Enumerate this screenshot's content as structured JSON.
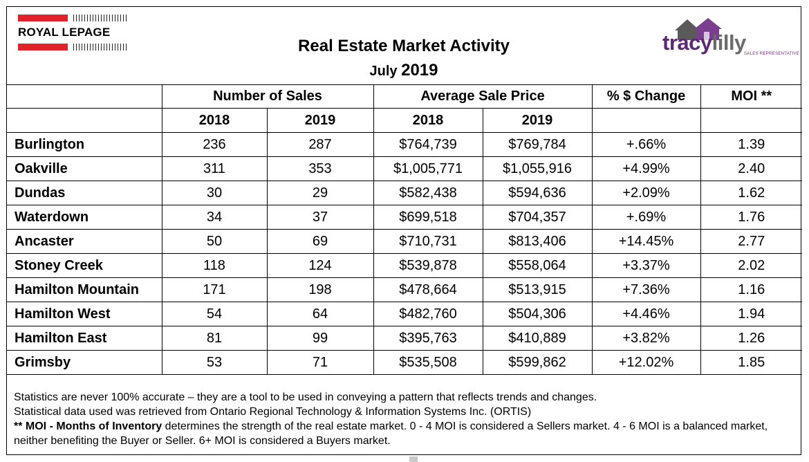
{
  "header": {
    "brand_left": "ROYAL LEPAGE",
    "title": "Real Estate Market Activity",
    "subtitle_month": "July",
    "subtitle_year": "2019",
    "brand_right_first": "tracy",
    "brand_right_second": "lilly",
    "brand_right_sub": "SALES REPRESENTATIVE"
  },
  "table": {
    "group_headers": [
      "Number of Sales",
      "Average Sale Price",
      "% $ Change",
      "MOI **"
    ],
    "year_headers": [
      "2018",
      "2019",
      "2018",
      "2019"
    ],
    "rows": [
      {
        "area": "Burlington",
        "sales_2018": "236",
        "sales_2019": "287",
        "price_2018": "$764,739",
        "price_2019": "$769,784",
        "change": "+.66%",
        "moi": "1.39"
      },
      {
        "area": "Oakville",
        "sales_2018": "311",
        "sales_2019": "353",
        "price_2018": "$1,005,771",
        "price_2019": "$1,055,916",
        "change": "+4.99%",
        "moi": "2.40"
      },
      {
        "area": "Dundas",
        "sales_2018": "30",
        "sales_2019": "29",
        "price_2018": "$582,438",
        "price_2019": "$594,636",
        "change": "+2.09%",
        "moi": "1.62"
      },
      {
        "area": "Waterdown",
        "sales_2018": "34",
        "sales_2019": "37",
        "price_2018": "$699,518",
        "price_2019": "$704,357",
        "change": "+.69%",
        "moi": "1.76"
      },
      {
        "area": "Ancaster",
        "sales_2018": "50",
        "sales_2019": "69",
        "price_2018": "$710,731",
        "price_2019": "$813,406",
        "change": "+14.45%",
        "moi": "2.77"
      },
      {
        "area": "Stoney Creek",
        "sales_2018": "118",
        "sales_2019": "124",
        "price_2018": "$539,878",
        "price_2019": "$558,064",
        "change": "+3.37%",
        "moi": "2.02"
      },
      {
        "area": "Hamilton Mountain",
        "sales_2018": "171",
        "sales_2019": "198",
        "price_2018": "$478,664",
        "price_2019": "$513,915",
        "change": "+7.36%",
        "moi": "1.16"
      },
      {
        "area": "Hamilton West",
        "sales_2018": "54",
        "sales_2019": "64",
        "price_2018": "$482,760",
        "price_2019": "$504,306",
        "change": "+4.46%",
        "moi": "1.94"
      },
      {
        "area": "Hamilton East",
        "sales_2018": "81",
        "sales_2019": "99",
        "price_2018": "$395,763",
        "price_2019": "$410,889",
        "change": "+3.82%",
        "moi": "1.26"
      },
      {
        "area": "Grimsby",
        "sales_2018": "53",
        "sales_2019": "71",
        "price_2018": "$535,508",
        "price_2019": "$599,862",
        "change": "+12.02%",
        "moi": "1.85"
      }
    ]
  },
  "notes": {
    "line1": "Statistics are never 100% accurate – they are a tool to be used in conveying a pattern that reflects trends and changes.",
    "line2": "Statistical data used was retrieved from Ontario Regional Technology & Information Systems Inc. (ORTIS)",
    "moi_bold": "** MOI - Months of Inventory",
    "moi_text": " determines the strength of the real estate market. 0 - 4 MOI is considered a Sellers market. 4 - 6 MOI is a balanced market, neither benefiting the Buyer or Seller. 6+ MOI is considered a Buyers market."
  },
  "colors": {
    "brand_red": "#e2222a",
    "tracy_purple": "#5b2a72",
    "lilly_gray": "#6b6b6b"
  }
}
